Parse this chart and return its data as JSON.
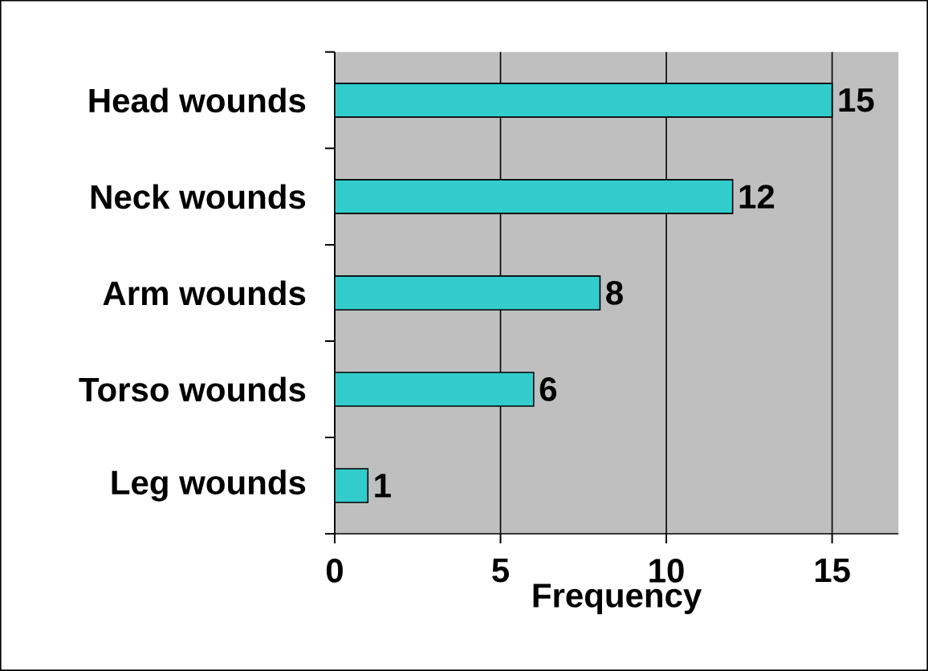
{
  "chart_data": {
    "type": "bar",
    "orientation": "horizontal",
    "xlabel": "Frequency",
    "categories": [
      "Head wounds",
      "Neck wounds",
      "Arm wounds",
      "Torso wounds",
      "Leg wounds"
    ],
    "values": [
      15,
      12,
      8,
      6,
      1
    ],
    "color": "#33cccc",
    "xlim": [
      0,
      17
    ],
    "xticks": [
      0,
      5,
      10,
      15
    ],
    "grid": "x",
    "data_labels": true
  }
}
